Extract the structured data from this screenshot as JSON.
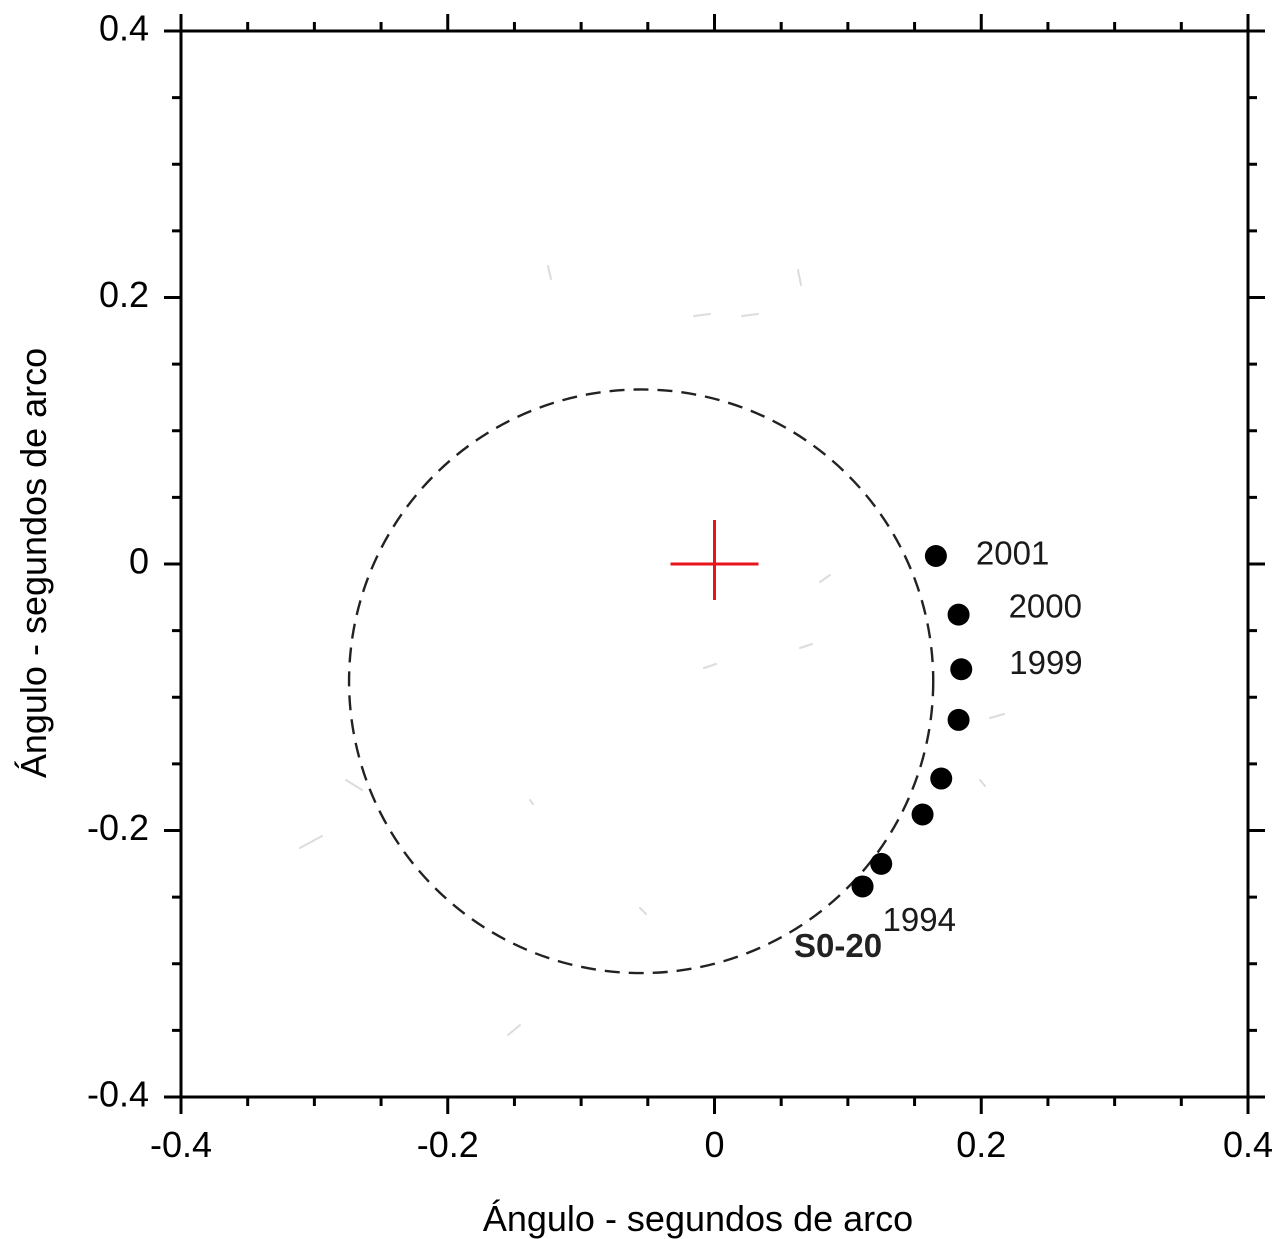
{
  "chart_data": {
    "type": "scatter",
    "title": "",
    "xlabel": "Ángulo - segundos de arco",
    "ylabel": "Ángulo - segundos de arco",
    "xlim": [
      -0.4,
      0.4
    ],
    "ylim": [
      -0.4,
      0.4
    ],
    "major_ticks": [
      -0.4,
      -0.2,
      0,
      0.2,
      0.4
    ],
    "x_tick_labels": [
      "-0.4",
      "-0.2",
      "0",
      "0.2",
      "0.4"
    ],
    "y_tick_labels": [
      "-0.4",
      "-0.2",
      "0",
      "0.2",
      "0.4"
    ],
    "minor_tick_step": 0.05,
    "grid": false,
    "center_marker": {
      "x": 0,
      "y": 0,
      "color": "#e8131b",
      "shape": "cross"
    },
    "orbit": {
      "label": "S0-20",
      "style": "dashed",
      "color": "#222222",
      "center": [
        -0.055,
        -0.088
      ],
      "radius": 0.219
    },
    "points": [
      {
        "x": 0.111,
        "y": -0.242,
        "label": "1994"
      },
      {
        "x": 0.125,
        "y": -0.225,
        "label": ""
      },
      {
        "x": 0.156,
        "y": -0.188,
        "label": ""
      },
      {
        "x": 0.17,
        "y": -0.161,
        "label": ""
      },
      {
        "x": 0.183,
        "y": -0.117,
        "label": ""
      },
      {
        "x": 0.185,
        "y": -0.079,
        "label": "1999"
      },
      {
        "x": 0.183,
        "y": -0.038,
        "label": "2000"
      },
      {
        "x": 0.166,
        "y": 0.006,
        "label": "2001"
      }
    ],
    "point_color": "#000000"
  }
}
